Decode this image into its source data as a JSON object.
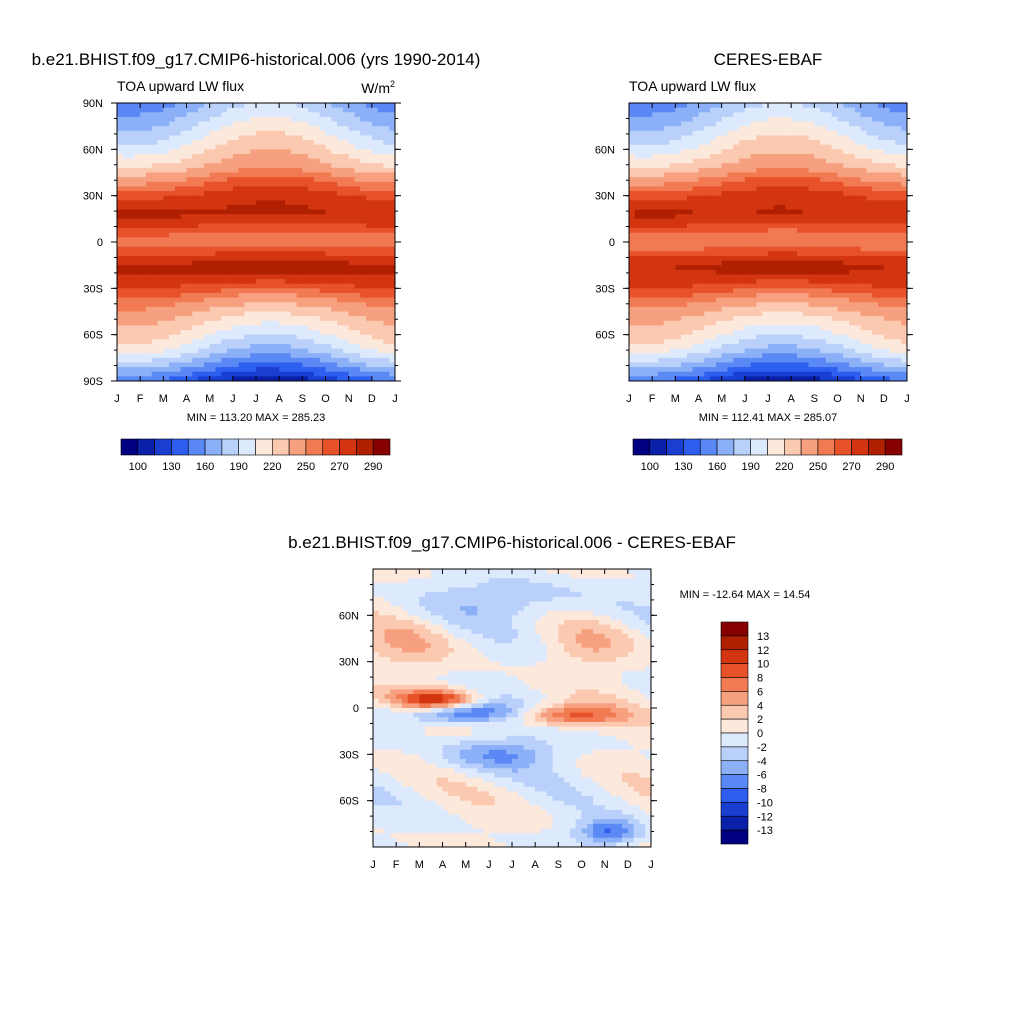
{
  "panels": [
    {
      "id": "model",
      "title": "b.e21.BHIST.f09_g17.CMIP6-historical.006 (yrs 1990-2014)",
      "left_label": "TOA upward LW flux",
      "units_label": "W/m",
      "units_sup": "2",
      "minmax": "MIN = 113.20 MAX = 285.23",
      "colorbar_labels": [
        "100",
        "130",
        "160",
        "190",
        "220",
        "250",
        "270",
        "290"
      ]
    },
    {
      "id": "obs",
      "title": "CERES-EBAF",
      "left_label": "TOA upward LW flux",
      "minmax": "MIN = 112.41 MAX = 285.07",
      "colorbar_labels": [
        "100",
        "130",
        "160",
        "190",
        "220",
        "250",
        "270",
        "290"
      ]
    },
    {
      "id": "diff",
      "title": "b.e21.BHIST.f09_g17.CMIP6-historical.006 - CERES-EBAF",
      "minmax": "MIN = -12.64 MAX =  14.54",
      "colorbar_labels": [
        "13",
        "12",
        "10",
        "8",
        "6",
        "4",
        "2",
        "0",
        "-2",
        "-4",
        "-6",
        "-8",
        "-10",
        "-12",
        "-13"
      ]
    }
  ],
  "chart_data": [
    {
      "type": "heatmap",
      "title": "b.e21.BHIST.f09_g17.CMIP6-historical.006 (yrs 1990-2014)",
      "ylabel": "TOA upward LW flux",
      "units": "W/m2",
      "x_ticks": [
        "J",
        "F",
        "M",
        "A",
        "M",
        "J",
        "J",
        "A",
        "S",
        "O",
        "N",
        "D",
        "J"
      ],
      "y_ticks": [
        "90N",
        "60N",
        "30N",
        "0",
        "30S",
        "60S",
        "90S"
      ],
      "y_range": [
        -90,
        90
      ],
      "min": 113.2,
      "max": 285.23,
      "levels": [
        100,
        115,
        130,
        145,
        160,
        175,
        190,
        205,
        220,
        235,
        250,
        260,
        270,
        280,
        290
      ],
      "colors": [
        "#000080",
        "#0a20a8",
        "#1a3ed0",
        "#2d5ef0",
        "#5a88f5",
        "#8cb0f8",
        "#b8d0fa",
        "#dde9fc",
        "#fde8dc",
        "#fbc8b0",
        "#f7a080",
        "#f27a52",
        "#e8522a",
        "#d23510",
        "#b02000",
        "#870000"
      ],
      "profile_lat": [
        -90,
        -80,
        -70,
        -60,
        -50,
        -40,
        -30,
        -20,
        -15,
        -8,
        0,
        8,
        15,
        20,
        30,
        40,
        50,
        60,
        70,
        80,
        90
      ],
      "profile_value": [
        125,
        160,
        190,
        210,
        225,
        245,
        265,
        278,
        280,
        268,
        252,
        268,
        278,
        280,
        272,
        255,
        232,
        215,
        200,
        185,
        170
      ]
    },
    {
      "type": "heatmap",
      "title": "CERES-EBAF",
      "ylabel": "TOA upward LW flux",
      "x_ticks": [
        "J",
        "F",
        "M",
        "A",
        "M",
        "J",
        "J",
        "A",
        "S",
        "O",
        "N",
        "D",
        "J"
      ],
      "y_ticks": [
        "60N",
        "30N",
        "0",
        "30S",
        "60S"
      ],
      "y_range": [
        -90,
        90
      ],
      "min": 112.41,
      "max": 285.07,
      "levels": [
        100,
        115,
        130,
        145,
        160,
        175,
        190,
        205,
        220,
        235,
        250,
        260,
        270,
        280,
        290
      ],
      "colors": [
        "#000080",
        "#0a20a8",
        "#1a3ed0",
        "#2d5ef0",
        "#5a88f5",
        "#8cb0f8",
        "#b8d0fa",
        "#dde9fc",
        "#fde8dc",
        "#fbc8b0",
        "#f7a080",
        "#f27a52",
        "#e8522a",
        "#d23510",
        "#b02000",
        "#870000"
      ],
      "profile_lat": [
        -90,
        -80,
        -70,
        -60,
        -50,
        -40,
        -30,
        -20,
        -15,
        -8,
        0,
        8,
        15,
        20,
        30,
        40,
        50,
        60,
        70,
        80,
        90
      ],
      "profile_value": [
        124,
        160,
        190,
        210,
        225,
        245,
        265,
        277,
        279,
        266,
        250,
        266,
        277,
        279,
        271,
        254,
        231,
        214,
        199,
        184,
        169
      ]
    },
    {
      "type": "heatmap",
      "title": "b.e21.BHIST.f09_g17.CMIP6-historical.006 - CERES-EBAF",
      "x_ticks": [
        "J",
        "F",
        "M",
        "A",
        "M",
        "J",
        "J",
        "A",
        "S",
        "O",
        "N",
        "D",
        "J"
      ],
      "y_ticks": [
        "60N",
        "30N",
        "0",
        "30S",
        "60S"
      ],
      "y_range": [
        -90,
        90
      ],
      "min": -12.64,
      "max": 14.54,
      "levels": [
        -13,
        -12,
        -10,
        -8,
        -6,
        -4,
        -2,
        0,
        2,
        4,
        6,
        8,
        10,
        12,
        13
      ],
      "colors": [
        "#000080",
        "#0a20a8",
        "#1a3ed0",
        "#2d5ef0",
        "#5a88f5",
        "#8cb0f8",
        "#b8d0fa",
        "#dde9fc",
        "#fde8dc",
        "#fbc8b0",
        "#f7a080",
        "#f27a52",
        "#e8522a",
        "#d23510",
        "#b02000",
        "#870000"
      ]
    }
  ]
}
